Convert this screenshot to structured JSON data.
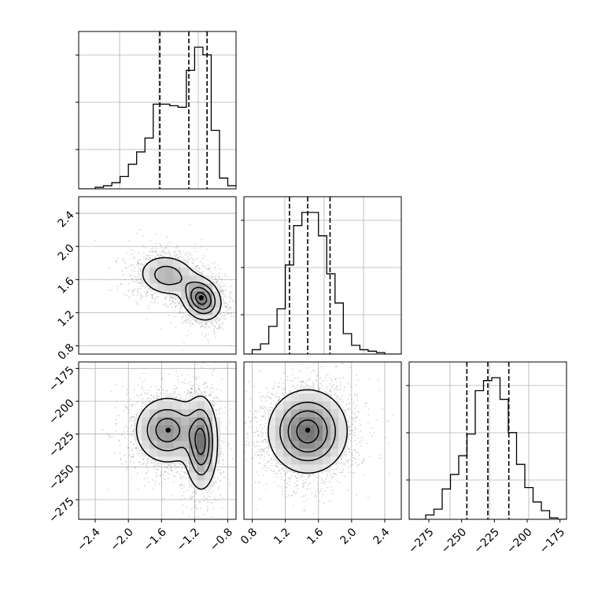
{
  "chart_data": [
    {
      "type": "histogram",
      "panel": "row1-col1",
      "xlim": [
        -2.6,
        -0.7
      ],
      "bins": [
        -2.6,
        -2.5,
        -2.4,
        -2.3,
        -2.2,
        -2.1,
        -2.0,
        -1.9,
        -1.8,
        -1.7,
        -1.6,
        -1.5,
        -1.4,
        -1.3,
        -1.2,
        -1.1,
        -1.0,
        -0.9,
        -0.8,
        -0.7
      ],
      "counts": [
        0,
        0,
        0.01,
        0.02,
        0.04,
        0.08,
        0.16,
        0.24,
        0.33,
        0.55,
        0.55,
        0.54,
        0.53,
        0.77,
        0.92,
        0.87,
        0.38,
        0.07,
        0.02
      ],
      "quantile_lines": [
        -1.62,
        -1.27,
        -1.05
      ],
      "x_tick_labels": [],
      "y_tick_labels": []
    },
    {
      "type": "histogram",
      "panel": "row2-col2",
      "xlim": [
        0.7,
        2.6
      ],
      "bins": [
        0.7,
        0.8,
        0.9,
        1.0,
        1.1,
        1.2,
        1.3,
        1.4,
        1.5,
        1.6,
        1.7,
        1.8,
        1.9,
        2.0,
        2.1,
        2.2,
        2.3,
        2.4,
        2.5,
        2.6
      ],
      "counts": [
        0,
        0.03,
        0.07,
        0.19,
        0.31,
        0.61,
        0.88,
        0.97,
        0.97,
        0.81,
        0.55,
        0.35,
        0.14,
        0.06,
        0.03,
        0.02,
        0.01,
        0,
        0
      ],
      "quantile_lines": [
        1.25,
        1.47,
        1.74
      ],
      "x_tick_labels": [],
      "y_tick_labels": []
    },
    {
      "type": "histogram",
      "panel": "row3-col3",
      "xlim": [
        -290,
        -170
      ],
      "bins": [
        -290,
        -283.7,
        -277.4,
        -271.1,
        -264.8,
        -258.5,
        -252.2,
        -245.9,
        -239.6,
        -233.3,
        -227.0,
        -220.7,
        -214.4,
        -208.1,
        -201.8,
        -195.5,
        -189.2,
        -182.9,
        -176.6,
        -170.3
      ],
      "counts": [
        0,
        0,
        0.03,
        0.07,
        0.21,
        0.31,
        0.44,
        0.59,
        0.89,
        0.96,
        0.98,
        0.83,
        0.6,
        0.38,
        0.22,
        0.12,
        0.06,
        0.01,
        0
      ],
      "quantile_lines": [
        -246,
        -230,
        -214
      ],
      "x_tick_labels": [
        "−275",
        "−250",
        "−225",
        "−200",
        "−175"
      ],
      "y_tick_labels": []
    },
    {
      "type": "scatter+contour",
      "panel": "row2-col1",
      "xlim": [
        -2.6,
        -0.7
      ],
      "ylim": [
        0.7,
        2.6
      ],
      "modes": [
        {
          "x": -1.53,
          "y": 1.65,
          "sx": 0.18,
          "sy": 0.13,
          "rho": -0.1,
          "w": 0.45
        },
        {
          "x": -1.12,
          "y": 1.37,
          "sx": 0.12,
          "sy": 0.13,
          "rho": -0.2,
          "w": 0.55
        }
      ],
      "peak": {
        "x": -1.12,
        "y": 1.38
      },
      "x_tick_labels": [],
      "y_ticks": [
        0.8,
        1.2,
        1.6,
        2.0,
        2.4
      ],
      "y_tick_labels": [
        "0.8",
        "1.2",
        "1.6",
        "2.0",
        "2.4"
      ]
    },
    {
      "type": "scatter+contour",
      "panel": "row3-col1",
      "xlim": [
        -2.6,
        -0.7
      ],
      "ylim": [
        -290,
        -170
      ],
      "modes": [
        {
          "x": -1.53,
          "y": -222,
          "sx": 0.2,
          "sy": 13,
          "rho": 0.0,
          "w": 0.55
        },
        {
          "x": -1.12,
          "y": -232,
          "sx": 0.1,
          "sy": 18,
          "rho": 0.0,
          "w": 0.45
        }
      ],
      "peak": {
        "x": -1.52,
        "y": -222
      },
      "x_ticks": [
        -2.4,
        -2.0,
        -1.6,
        -1.2,
        -0.8
      ],
      "x_tick_labels": [
        "−2.4",
        "−2.0",
        "−1.6",
        "−1.2",
        "−0.8"
      ],
      "y_ticks": [
        -275,
        -250,
        -225,
        -200,
        -175
      ],
      "y_tick_labels": [
        "−275",
        "−250",
        "−225",
        "−200",
        "−175"
      ]
    },
    {
      "type": "scatter+contour",
      "panel": "row3-col2",
      "xlim": [
        0.7,
        2.6
      ],
      "ylim": [
        -290,
        -170
      ],
      "modes": [
        {
          "x": 1.47,
          "y": -223,
          "sx": 0.24,
          "sy": 16,
          "rho": 0.0,
          "w": 1.0
        }
      ],
      "peak": {
        "x": 1.47,
        "y": -222
      },
      "x_ticks": [
        0.8,
        1.2,
        1.6,
        2.0,
        2.4
      ],
      "x_tick_labels": [
        "0.8",
        "1.2",
        "1.6",
        "2.0",
        "2.4"
      ],
      "y_tick_labels": []
    }
  ],
  "colors": {
    "scatter": "#888888",
    "contour": "#000000",
    "grid": "#b0b0b0",
    "frame": "#000000"
  }
}
